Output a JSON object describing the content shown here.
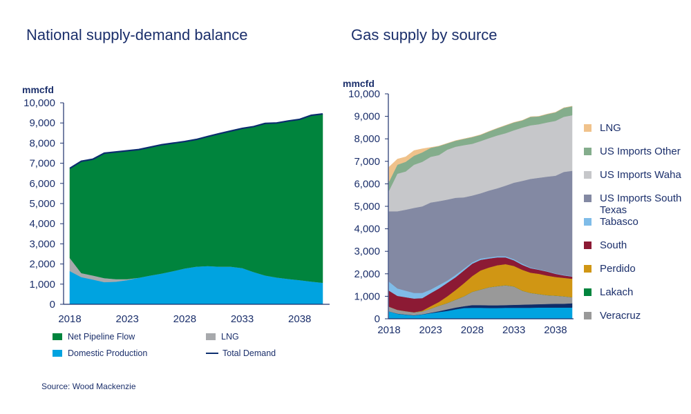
{
  "source": "Source: Wood Mackenzie",
  "chart_data": [
    {
      "type": "area",
      "title": "National supply-demand balance",
      "ylabel": "mmcfd",
      "ylim": [
        0,
        10000
      ],
      "yticks": [
        "0",
        "1,000",
        "2,000",
        "3,000",
        "4,000",
        "5,000",
        "6,000",
        "7,000",
        "8,000",
        "9,000",
        "10,000"
      ],
      "xticks": [
        "2018",
        "2023",
        "2028",
        "2033",
        "2038"
      ],
      "x": [
        2018,
        2019,
        2020,
        2021,
        2022,
        2023,
        2024,
        2025,
        2026,
        2027,
        2028,
        2029,
        2030,
        2031,
        2032,
        2033,
        2034,
        2035,
        2036,
        2037,
        2038,
        2039,
        2040
      ],
      "legend_position": "bottom",
      "series": [
        {
          "name": "Domestic Production",
          "color": "#00a3e0",
          "values": [
            1650,
            1350,
            1230,
            1100,
            1120,
            1200,
            1320,
            1430,
            1530,
            1650,
            1780,
            1870,
            1900,
            1870,
            1870,
            1800,
            1600,
            1430,
            1330,
            1260,
            1200,
            1130,
            1070
          ]
        },
        {
          "name": "LNG",
          "color": "#a7a9ac",
          "values": [
            650,
            200,
            200,
            200,
            130,
            50,
            0,
            0,
            0,
            0,
            0,
            0,
            0,
            0,
            0,
            0,
            0,
            0,
            0,
            0,
            0,
            0,
            0
          ]
        },
        {
          "name": "Net Pipeline Flow",
          "color": "#00843d",
          "values": [
            4450,
            5550,
            5770,
            6200,
            6310,
            6370,
            6360,
            6370,
            6390,
            6350,
            6300,
            6310,
            6430,
            6600,
            6730,
            6930,
            7220,
            7550,
            7670,
            7840,
            7980,
            8250,
            8380
          ]
        },
        {
          "name": "Total Demand",
          "color": "#0b2d6e",
          "type": "line",
          "values": [
            6750,
            7100,
            7200,
            7500,
            7560,
            7620,
            7680,
            7800,
            7920,
            8000,
            8080,
            8180,
            8330,
            8470,
            8600,
            8730,
            8820,
            8980,
            9000,
            9100,
            9180,
            9380,
            9450
          ]
        }
      ]
    },
    {
      "type": "area",
      "title": "Gas supply by source",
      "ylabel": "mmcfd",
      "ylim": [
        0,
        10000
      ],
      "yticks": [
        "0",
        "1,000",
        "2,000",
        "3,000",
        "4,000",
        "5,000",
        "6,000",
        "7,000",
        "8,000",
        "9,000",
        "10,000"
      ],
      "xticks": [
        "2018",
        "2023",
        "2028",
        "2033",
        "2038"
      ],
      "x": [
        2018,
        2019,
        2020,
        2021,
        2022,
        2023,
        2024,
        2025,
        2026,
        2027,
        2028,
        2029,
        2030,
        2031,
        2032,
        2033,
        2034,
        2035,
        2036,
        2037,
        2038,
        2039,
        2040
      ],
      "legend_position": "right",
      "series": [
        {
          "name": "",
          "color": "#00a3e0",
          "values": [
            330,
            220,
            180,
            150,
            190,
            250,
            300,
            350,
            420,
            480,
            490,
            490,
            480,
            480,
            490,
            490,
            490,
            490,
            500,
            500,
            500,
            500,
            500
          ]
        },
        {
          "name": "",
          "color": "#0f2d69",
          "values": [
            0,
            10,
            10,
            10,
            10,
            20,
            40,
            70,
            80,
            80,
            120,
            120,
            120,
            120,
            120,
            130,
            140,
            150,
            150,
            160,
            170,
            170,
            190
          ]
        },
        {
          "name": "Veracruz",
          "color": "#999999",
          "values": [
            210,
            170,
            150,
            130,
            130,
            180,
            240,
            280,
            350,
            440,
            590,
            690,
            800,
            850,
            880,
            820,
            620,
            510,
            450,
            390,
            360,
            330,
            270
          ]
        },
        {
          "name": "Lakach",
          "color": "#00843d",
          "values": [
            0,
            0,
            0,
            0,
            0,
            0,
            0,
            0,
            0,
            0,
            0,
            0,
            0,
            0,
            0,
            0,
            0,
            0,
            0,
            0,
            0,
            0,
            0
          ]
        },
        {
          "name": "Perdido",
          "color": "#d09614",
          "values": [
            0,
            0,
            0,
            0,
            30,
            110,
            170,
            300,
            430,
            580,
            700,
            850,
            880,
            930,
            940,
            910,
            930,
            900,
            900,
            870,
            830,
            820,
            820
          ]
        },
        {
          "name": "South",
          "color": "#8c1a34",
          "values": [
            710,
            620,
            620,
            610,
            560,
            580,
            600,
            600,
            570,
            570,
            550,
            470,
            400,
            350,
            300,
            250,
            220,
            200,
            180,
            180,
            140,
            110,
            100
          ]
        },
        {
          "name": "Tabasco",
          "color": "#7fbce8",
          "values": [
            400,
            330,
            290,
            250,
            230,
            160,
            150,
            100,
            100,
            80,
            60,
            60,
            50,
            50,
            50,
            50,
            50,
            30,
            20,
            20,
            20,
            20,
            20
          ]
        },
        {
          "name": "US Imports South Texas",
          "color": "#8389a3",
          "values": [
            3130,
            3430,
            3600,
            3780,
            3850,
            3870,
            3730,
            3600,
            3430,
            3170,
            2970,
            2900,
            2970,
            3020,
            3140,
            3400,
            3680,
            3940,
            4070,
            4200,
            4340,
            4580,
            4680
          ]
        },
        {
          "name": "US Imports Waha",
          "color": "#c6c7ca",
          "values": [
            920,
            1670,
            1700,
            1920,
            1980,
            2030,
            2050,
            2220,
            2270,
            2320,
            2300,
            2320,
            2330,
            2350,
            2330,
            2330,
            2370,
            2380,
            2380,
            2410,
            2440,
            2450,
            2470
          ]
        },
        {
          "name": "US Imports Other",
          "color": "#84ad8c",
          "values": [
            400,
            400,
            430,
            400,
            420,
            400,
            400,
            280,
            270,
            280,
            300,
            280,
            300,
            320,
            350,
            350,
            320,
            380,
            350,
            370,
            380,
            400,
            400
          ]
        },
        {
          "name": "LNG",
          "color": "#f0c28b",
          "values": [
            650,
            250,
            220,
            230,
            160,
            20,
            0,
            0,
            0,
            0,
            0,
            0,
            0,
            0,
            0,
            0,
            0,
            0,
            0,
            0,
            0,
            0,
            0
          ]
        }
      ]
    }
  ]
}
